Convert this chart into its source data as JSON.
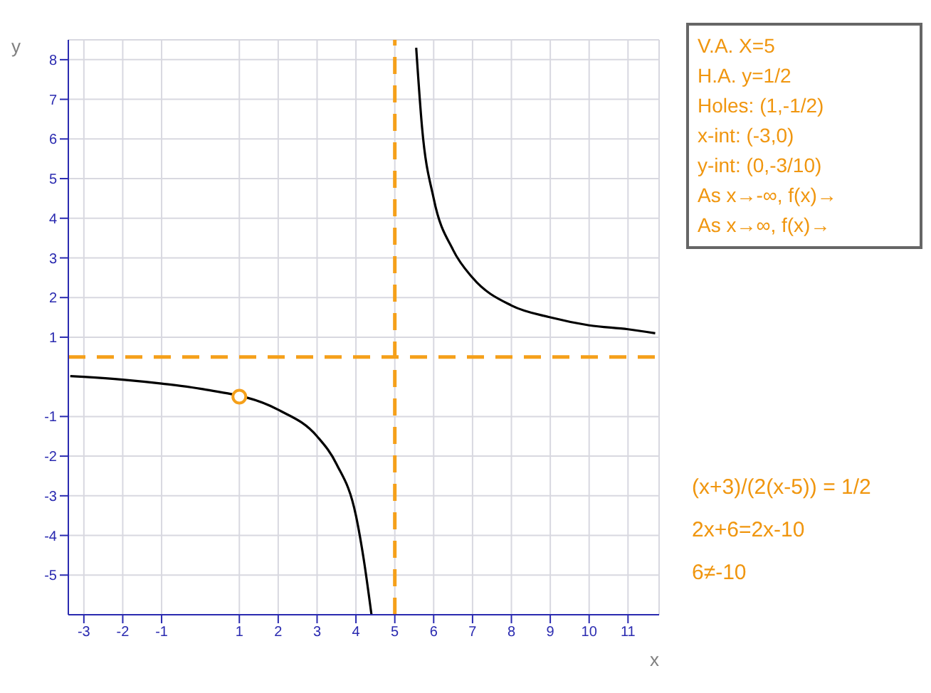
{
  "chart_data": {
    "type": "line",
    "xlabel": "x",
    "ylabel": "y",
    "xlim": [
      -3.4,
      11.8
    ],
    "ylim": [
      -6,
      8.5
    ],
    "xticks": [
      -3,
      -2,
      -1,
      1,
      2,
      3,
      4,
      5,
      6,
      7,
      8,
      9,
      10,
      11
    ],
    "yticks": [
      -5,
      -4,
      -3,
      -2,
      -1,
      1,
      2,
      3,
      4,
      5,
      6,
      7,
      8
    ],
    "grid": true,
    "legend": false,
    "series": [
      {
        "color": "#000000",
        "marker": "none",
        "x": [
          -3.35,
          -3,
          -2,
          -1,
          0,
          2,
          3,
          3.5,
          4,
          4.2,
          4.4
        ],
        "values": [
          0.02,
          0,
          -0.07,
          -0.17,
          -0.3,
          -0.83,
          -1.5,
          -2.2,
          -3.5,
          -4.6,
          -6
        ]
      },
      {
        "color": "#000000",
        "marker": "none",
        "x": [
          5.55,
          5.7,
          6,
          6.5,
          7,
          8,
          9,
          10,
          11,
          11.7
        ],
        "values": [
          8.3,
          6.3,
          4.5,
          3.2,
          2.5,
          1.8,
          1.5,
          1.3,
          1.2,
          1.1
        ]
      },
      {
        "type": "scatter",
        "color": "#f5a01a",
        "marker": "circle",
        "x": [
          1
        ],
        "values": [
          -0.5
        ]
      }
    ],
    "ref_lines": [
      {
        "axis": "x",
        "value": 5,
        "color": "#f5a01a",
        "line_style": "dashed"
      },
      {
        "axis": "y",
        "value": 0.5,
        "color": "#f5a01a",
        "line_style": "dashed"
      }
    ],
    "annotations": [
      "V.A. X=5",
      "H.A. y=1/2",
      "Holes: (1,-1/2)",
      "x-int: (-3,0)",
      "y-int: (0,-3/10)",
      "As x→-∞, f(x)→",
      "As x→∞, f(x)→",
      "(x+3)/(2(x-5)) = 1/2",
      "2x+6=2x-10",
      "6≠-10"
    ]
  }
}
